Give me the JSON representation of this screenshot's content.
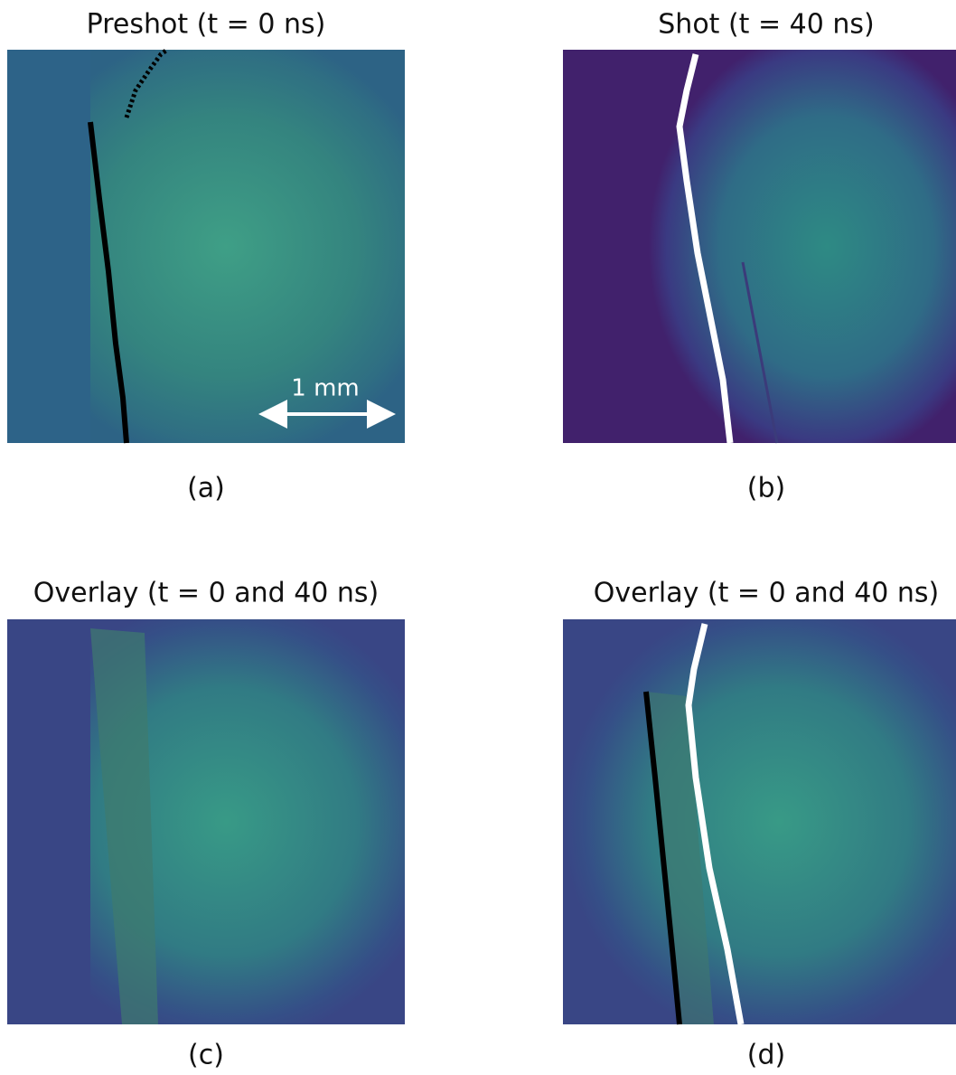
{
  "panels": [
    {
      "title": "Preshot (t = 0 ns)",
      "caption": "(a)"
    },
    {
      "title": "Shot (t = 40 ns)",
      "caption": "(b)"
    },
    {
      "title": "Overlay (t = 0 and 40 ns)",
      "caption": "(c)"
    },
    {
      "title": "Overlay (t = 0 and 40 ns)",
      "caption": "(d)"
    }
  ],
  "scale_bar": "1 mm"
}
